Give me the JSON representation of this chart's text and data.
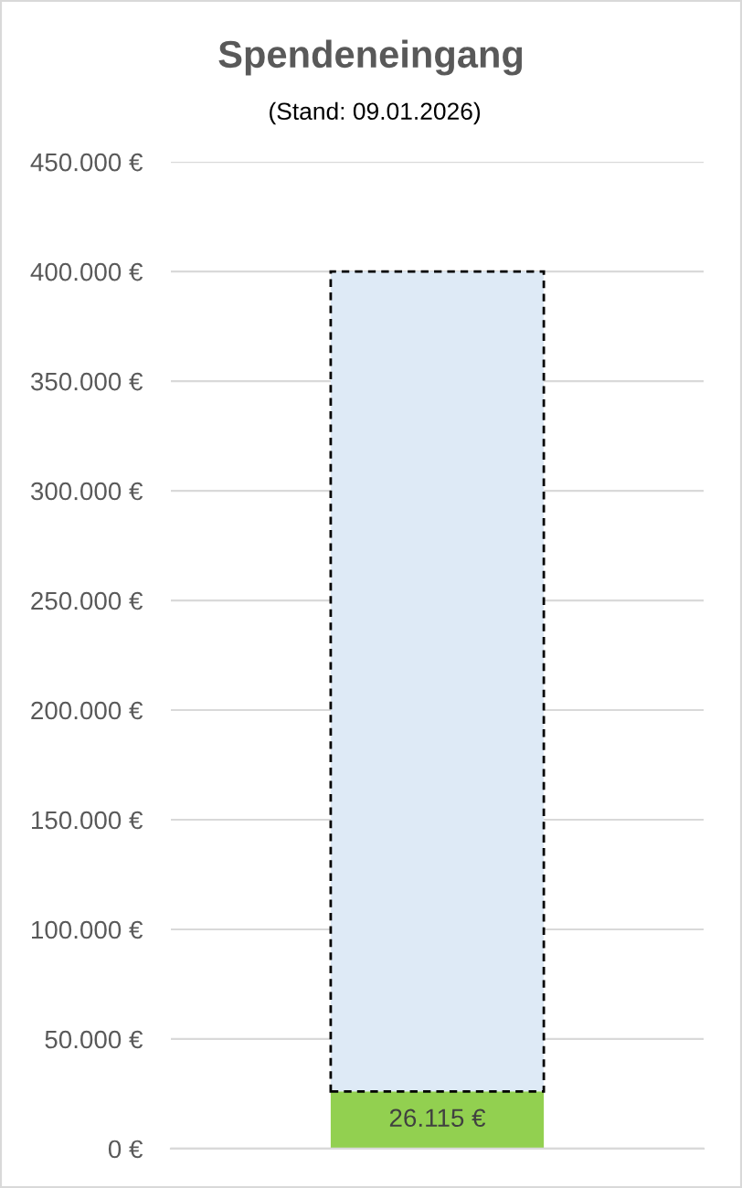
{
  "chart_data": {
    "type": "bar",
    "title": "Spendeneingang",
    "subtitle": "(Stand: 09.01.2026)",
    "categories": [
      null
    ],
    "stacked": true,
    "series": [
      {
        "color": "#92d050",
        "values": [
          26115
        ],
        "value_labels": [
          "26.115 €"
        ]
      },
      {
        "color": "#deeaf6",
        "values": [
          373885
        ],
        "line_style": "dashed"
      }
    ],
    "ylim": [
      0,
      450000
    ],
    "yticks": [
      {
        "value": 0,
        "label": "0 €"
      },
      {
        "value": 50000,
        "label": "50.000 €"
      },
      {
        "value": 100000,
        "label": "100.000 €"
      },
      {
        "value": 150000,
        "label": "150.000 €"
      },
      {
        "value": 200000,
        "label": "200.000 €"
      },
      {
        "value": 250000,
        "label": "250.000 €"
      },
      {
        "value": 300000,
        "label": "300.000 €"
      },
      {
        "value": 350000,
        "label": "350.000 €"
      },
      {
        "value": 400000,
        "label": "400.000 €"
      },
      {
        "value": 450000,
        "label": "450.000 €"
      }
    ],
    "grid": "y",
    "tick_labels": "y"
  }
}
